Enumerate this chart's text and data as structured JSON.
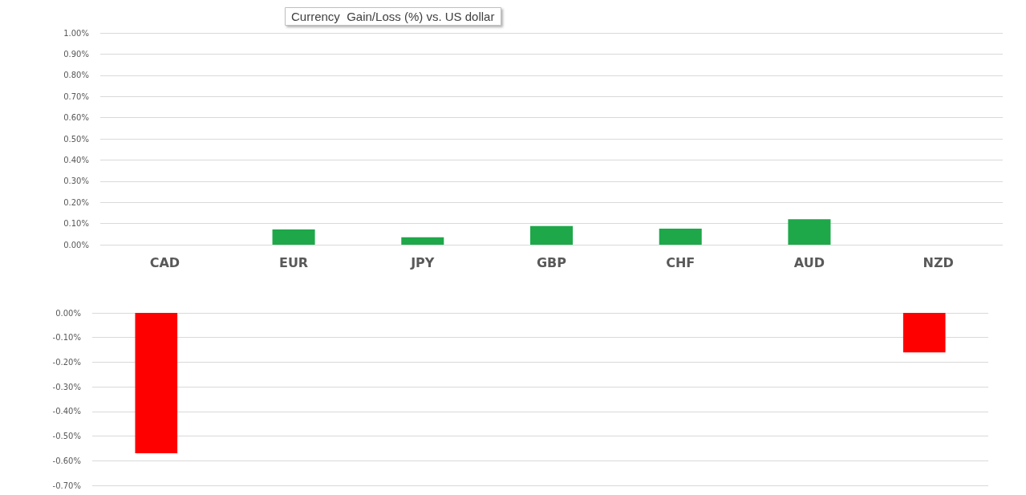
{
  "chart_data": [
    {
      "type": "bar",
      "title": "Currency  Gain/Loss (%) vs. US dollar",
      "categories": [
        "CAD",
        "EUR",
        "JPY",
        "GBP",
        "CHF",
        "AUD",
        "NZD"
      ],
      "series": [
        {
          "color": "#1ea84a",
          "values": [
            null,
            0.072,
            0.035,
            0.088,
            0.076,
            0.12,
            null
          ]
        }
      ],
      "ylim": [
        0,
        1
      ],
      "yticks": [
        {
          "value": 0,
          "label": "0.00%"
        },
        {
          "value": 0.1,
          "label": "0.10%"
        },
        {
          "value": 0.2,
          "label": "0.20%"
        },
        {
          "value": 0.3,
          "label": "0.30%"
        },
        {
          "value": 0.4,
          "label": "0.40%"
        },
        {
          "value": 0.5,
          "label": "0.50%"
        },
        {
          "value": 0.6,
          "label": "0.60%"
        },
        {
          "value": 0.7,
          "label": "0.70%"
        },
        {
          "value": 0.8,
          "label": "0.80%"
        },
        {
          "value": 0.9,
          "label": "0.90%"
        },
        {
          "value": 1,
          "label": "1.00%"
        }
      ],
      "grid": "y"
    },
    {
      "type": "bar",
      "categories": [
        null,
        null,
        null,
        null,
        null,
        null,
        null
      ],
      "series": [
        {
          "color": "#ff0000",
          "values": [
            -0.57,
            null,
            null,
            null,
            null,
            null,
            -0.16
          ]
        }
      ],
      "ylim": [
        -0.7,
        0
      ],
      "yticks": [
        {
          "value": 0,
          "label": "0.00%"
        },
        {
          "value": -0.1,
          "label": "-0.10%"
        },
        {
          "value": -0.2,
          "label": "-0.20%"
        },
        {
          "value": -0.3,
          "label": "-0.30%"
        },
        {
          "value": -0.4,
          "label": "-0.40%"
        },
        {
          "value": -0.5,
          "label": "-0.50%"
        },
        {
          "value": -0.6,
          "label": "-0.60%"
        },
        {
          "value": -0.7,
          "label": "-0.70%"
        }
      ],
      "grid": "y",
      "tick_labels": "y"
    }
  ]
}
